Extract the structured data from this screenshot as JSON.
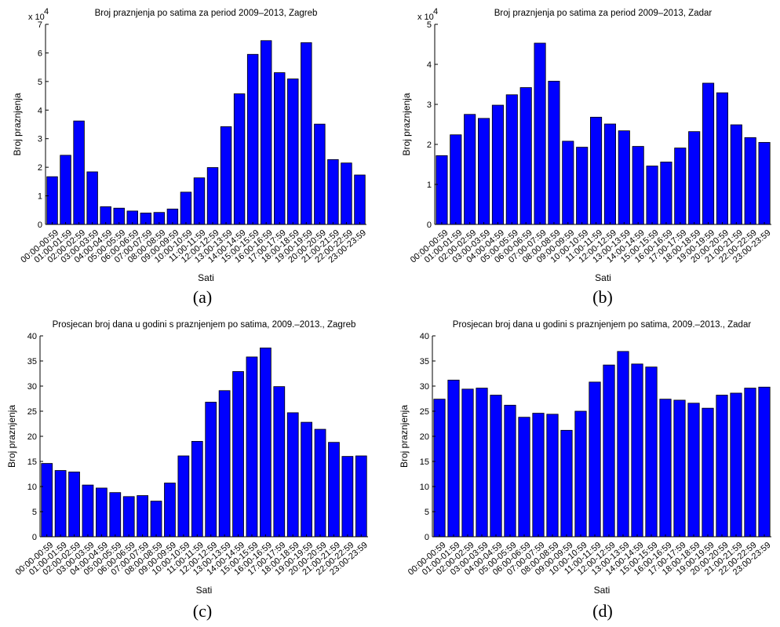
{
  "categories": [
    "00:00-00:59",
    "01:00-01:59",
    "02:00-02:59",
    "03:00-03:59",
    "04:00-04:59",
    "05:00-05:59",
    "06:00-06:59",
    "07:00-07:59",
    "08:00-08:59",
    "09:00-09:59",
    "10:00-10:59",
    "11:00-11:59",
    "12:00-12:59",
    "13:00-13:59",
    "14:00-14:59",
    "15:00-15:59",
    "16:00-16:59",
    "17:00-17:59",
    "18:00-18:59",
    "19:00-19:59",
    "20:00-20:59",
    "21:00-21:59",
    "22:00-22:59",
    "23:00-23:59"
  ],
  "colors": {
    "bar_fill": "#0000ff",
    "bar_stroke": "#000000",
    "axis": "#000000"
  },
  "chart_data": [
    {
      "panel_label": "(a)",
      "type": "bar",
      "title": "Broj praznjenja po satima za period 2009–2013, Zagreb",
      "xlabel": "Sati",
      "ylabel": "Broj praznjenja",
      "exponent_label": "x 10",
      "exponent_power": "4",
      "ylim": [
        0,
        70000
      ],
      "yticks": [
        0,
        10000,
        20000,
        30000,
        40000,
        50000,
        60000,
        70000
      ],
      "ytick_labels": [
        "0",
        "1",
        "2",
        "3",
        "4",
        "5",
        "6",
        "7"
      ],
      "values": [
        16700,
        24200,
        36200,
        18400,
        6200,
        5700,
        4700,
        4000,
        4200,
        5400,
        11300,
        16300,
        19900,
        34200,
        45700,
        59500,
        64300,
        53100,
        50900,
        63600,
        35100,
        22700,
        21500,
        17300
      ]
    },
    {
      "panel_label": "(b)",
      "type": "bar",
      "title": "Broj praznjenja po satima za period 2009–2013, Zadar",
      "xlabel": "Sati",
      "ylabel": "Broj praznjenja",
      "exponent_label": "x 10",
      "exponent_power": "4",
      "ylim": [
        0,
        50000
      ],
      "yticks": [
        0,
        10000,
        20000,
        30000,
        40000,
        50000
      ],
      "ytick_labels": [
        "0",
        "1",
        "2",
        "3",
        "4",
        "5"
      ],
      "values": [
        17200,
        22400,
        27500,
        26500,
        29800,
        32400,
        34200,
        45300,
        35800,
        20800,
        19300,
        26800,
        25100,
        23400,
        19500,
        14600,
        15600,
        19100,
        23200,
        35300,
        32900,
        24900,
        21700,
        20500
      ]
    },
    {
      "panel_label": "(c)",
      "type": "bar",
      "title": "Prosjecan broj dana u godini s praznjenjem po satima, 2009.–2013., Zagreb",
      "xlabel": "Sati",
      "ylabel": "Broj praznjenja",
      "exponent_label": "",
      "exponent_power": "",
      "ylim": [
        0,
        40
      ],
      "yticks": [
        0,
        5,
        10,
        15,
        20,
        25,
        30,
        35,
        40
      ],
      "ytick_labels": [
        "0",
        "5",
        "10",
        "15",
        "20",
        "25",
        "30",
        "35",
        "40"
      ],
      "values": [
        14.6,
        13.2,
        12.9,
        10.3,
        9.7,
        8.8,
        8.0,
        8.2,
        7.1,
        10.7,
        16.1,
        19.0,
        26.8,
        29.1,
        32.9,
        35.8,
        37.6,
        29.9,
        24.7,
        22.8,
        21.4,
        18.8,
        16.0,
        16.1
      ]
    },
    {
      "panel_label": "(d)",
      "type": "bar",
      "title": "Prosjecan broj dana u godini s praznjenjem po satima, 2009.–2013., Zadar",
      "xlabel": "Sati",
      "ylabel": "Broj praznjenja",
      "exponent_label": "",
      "exponent_power": "",
      "ylim": [
        0,
        40
      ],
      "yticks": [
        0,
        5,
        10,
        15,
        20,
        25,
        30,
        35,
        40
      ],
      "ytick_labels": [
        "0",
        "5",
        "10",
        "15",
        "20",
        "25",
        "30",
        "35",
        "40"
      ],
      "values": [
        27.4,
        31.2,
        29.4,
        29.6,
        28.2,
        26.2,
        23.8,
        24.6,
        24.4,
        21.2,
        25.0,
        30.8,
        34.2,
        36.9,
        34.4,
        33.8,
        27.4,
        27.2,
        26.6,
        25.6,
        28.2,
        28.6,
        29.6,
        29.8
      ]
    }
  ]
}
